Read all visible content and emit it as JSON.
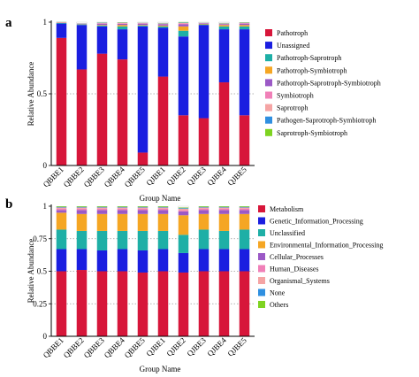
{
  "panel_labels": [
    "a",
    "b"
  ],
  "chart_data": [
    {
      "type": "bar",
      "stacked": true,
      "panel": "a",
      "title": "",
      "xlabel": "Group Name",
      "ylabel": "Relative Abundance",
      "ylim": [
        0,
        1
      ],
      "yticks": [
        "0",
        "0.5",
        "1"
      ],
      "grid": "dotted horizontal",
      "legend_position": "right",
      "categories": [
        "QBBE1",
        "QBBE2",
        "QBBE3",
        "QBBE4",
        "QBBE5",
        "QJBE1",
        "QJBE2",
        "QJBE3",
        "QJBE4",
        "QJBE5"
      ],
      "series": [
        {
          "name": "Pathotroph",
          "color": "#d7163a",
          "values": [
            0.89,
            0.67,
            0.78,
            0.74,
            0.09,
            0.62,
            0.35,
            0.33,
            0.58,
            0.35
          ]
        },
        {
          "name": "Unassigned",
          "color": "#1a1ee0",
          "values": [
            0.1,
            0.31,
            0.19,
            0.21,
            0.88,
            0.34,
            0.55,
            0.65,
            0.37,
            0.6
          ]
        },
        {
          "name": "Pathotroph-Saprotroph",
          "color": "#1eafa6",
          "values": [
            0.004,
            0.004,
            0.006,
            0.02,
            0.006,
            0.01,
            0.04,
            0.004,
            0.02,
            0.02
          ]
        },
        {
          "name": "Pathotroph-Symbiotroph",
          "color": "#f5a623",
          "values": [
            0.002,
            0.002,
            0.004,
            0.01,
            0.004,
            0.006,
            0.03,
            0.004,
            0.01,
            0.01
          ]
        },
        {
          "name": "Pathotroph-Saprotroph-Symbiotroph",
          "color": "#9b59c6",
          "values": [
            0.002,
            0.002,
            0.01,
            0.008,
            0.01,
            0.01,
            0.015,
            0.004,
            0.006,
            0.01
          ]
        },
        {
          "name": "Symbiotroph",
          "color": "#f080b8",
          "values": [
            0.001,
            0.001,
            0.002,
            0.004,
            0.002,
            0.002,
            0.005,
            0.001,
            0.002,
            0.003
          ]
        },
        {
          "name": "Saprotroph",
          "color": "#f5a4a4",
          "values": [
            0.001,
            0.001,
            0.002,
            0.004,
            0.002,
            0.002,
            0.005,
            0.001,
            0.002,
            0.003
          ]
        },
        {
          "name": "Pathogen-Saprotroph-Symbiotroph",
          "color": "#2f8fe0",
          "values": [
            0.001,
            0.001,
            0.002,
            0.002,
            0.001,
            0.002,
            0.003,
            0.001,
            0.002,
            0.002
          ]
        },
        {
          "name": "Saprotroph-Symbiotroph",
          "color": "#7ed321",
          "values": [
            0.001,
            0.001,
            0.002,
            0.002,
            0.001,
            0.002,
            0.003,
            0.001,
            0.002,
            0.002
          ]
        }
      ]
    },
    {
      "type": "bar",
      "stacked": true,
      "panel": "b",
      "title": "",
      "xlabel": "Group Name",
      "ylabel": "Relative Abundance",
      "ylim": [
        0,
        1
      ],
      "yticks": [
        "0",
        "0.25",
        "0.5",
        "0.75",
        "1"
      ],
      "grid": "dotted horizontal",
      "legend_position": "right",
      "categories": [
        "QBBE1",
        "QBBE2",
        "QBBE3",
        "QBBE4",
        "QBBE5",
        "QJBE1",
        "QJBE2",
        "QJBE3",
        "QJBE4",
        "QJBE5"
      ],
      "series": [
        {
          "name": "Metabolism",
          "color": "#d7163a",
          "values": [
            0.5,
            0.51,
            0.5,
            0.5,
            0.49,
            0.5,
            0.49,
            0.5,
            0.5,
            0.5
          ]
        },
        {
          "name": "Genetic_Information_Processing",
          "color": "#1a1ee0",
          "values": [
            0.17,
            0.16,
            0.16,
            0.17,
            0.17,
            0.17,
            0.15,
            0.17,
            0.17,
            0.17
          ]
        },
        {
          "name": "Unclassified",
          "color": "#1eafa6",
          "values": [
            0.15,
            0.14,
            0.15,
            0.14,
            0.15,
            0.14,
            0.14,
            0.15,
            0.14,
            0.15
          ]
        },
        {
          "name": "Environmental_Information_Processing",
          "color": "#f5a623",
          "values": [
            0.13,
            0.13,
            0.13,
            0.13,
            0.13,
            0.13,
            0.15,
            0.12,
            0.13,
            0.12
          ]
        },
        {
          "name": "Cellular_Processes",
          "color": "#9b59c6",
          "values": [
            0.02,
            0.03,
            0.03,
            0.03,
            0.03,
            0.03,
            0.03,
            0.03,
            0.03,
            0.03
          ]
        },
        {
          "name": "Human_Diseases",
          "color": "#f080b8",
          "values": [
            0.01,
            0.01,
            0.01,
            0.01,
            0.01,
            0.01,
            0.01,
            0.01,
            0.01,
            0.01
          ]
        },
        {
          "name": "Organismal_Systems",
          "color": "#f5a4a4",
          "values": [
            0.01,
            0.01,
            0.01,
            0.01,
            0.01,
            0.01,
            0.01,
            0.01,
            0.01,
            0.01
          ]
        },
        {
          "name": "None",
          "color": "#2f8fe0",
          "values": [
            0.005,
            0.005,
            0.005,
            0.005,
            0.005,
            0.005,
            0.005,
            0.005,
            0.005,
            0.005
          ]
        },
        {
          "name": "Others",
          "color": "#7ed321",
          "values": [
            0.005,
            0.005,
            0.005,
            0.005,
            0.005,
            0.005,
            0.005,
            0.005,
            0.005,
            0.005
          ]
        }
      ]
    }
  ]
}
